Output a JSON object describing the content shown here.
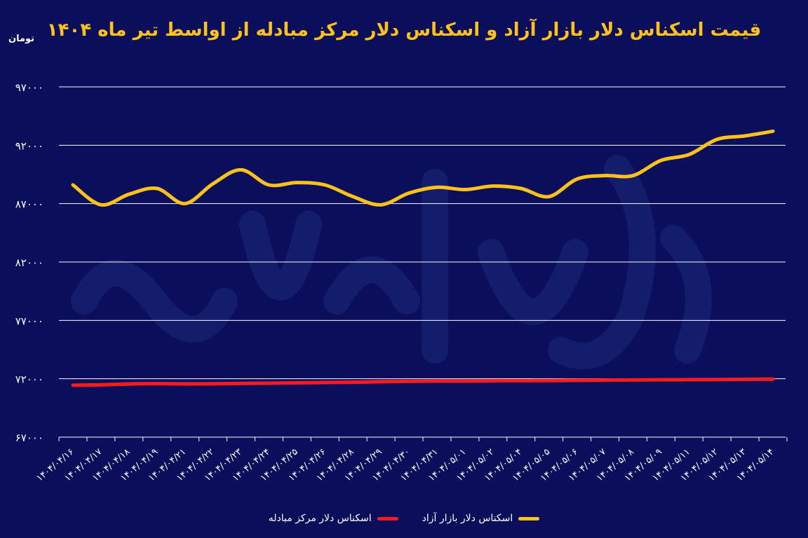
{
  "chart_data": {
    "type": "line",
    "title": "قیمت اسکناس دلار بازار آزاد و اسکناس دلار مرکز مبادله از اواسط تیر ماه ۱۴۰۴",
    "ylabel": "تومان",
    "xlabel": "",
    "ylim": [
      67000,
      97000
    ],
    "yticks": [
      "۶۷۰۰۰",
      "۷۲۰۰۰",
      "۷۷۰۰۰",
      "۸۲۰۰۰",
      "۸۷۰۰۰",
      "۹۲۰۰۰",
      "۹۷۰۰۰"
    ],
    "ytick_values": [
      67000,
      72000,
      77000,
      82000,
      87000,
      92000,
      97000
    ],
    "grid": true,
    "legend_position": "bottom",
    "categories": [
      "۱۴۰۴/۰۴/۱۶",
      "۱۴۰۴/۰۴/۱۷",
      "۱۴۰۴/۰۴/۱۸",
      "۱۴۰۴/۰۴/۱۹",
      "۱۴۰۴/۰۴/۲۱",
      "۱۴۰۴/۰۴/۲۲",
      "۱۴۰۴/۰۴/۲۳",
      "۱۴۰۴/۰۴/۲۴",
      "۱۴۰۴/۰۴/۲۵",
      "۱۴۰۴/۰۴/۲۶",
      "۱۴۰۴/۰۴/۲۸",
      "۱۴۰۴/۰۴/۲۹",
      "۱۴۰۴/۰۴/۳۰",
      "۱۴۰۴/۰۴/۳۱",
      "۱۴۰۴/۰۵/۰۱",
      "۱۴۰۴/۰۵/۰۲",
      "۱۴۰۴/۰۵/۰۴",
      "۱۴۰۴/۰۵/۰۵",
      "۱۴۰۴/۰۵/۰۶",
      "۱۴۰۴/۰۵/۰۷",
      "۱۴۰۴/۰۵/۰۸",
      "۱۴۰۴/۰۵/۰۹",
      "۱۴۰۴/۰۵/۱۱",
      "۱۴۰۴/۰۵/۱۲",
      "۱۴۰۴/۰۵/۱۳",
      "۱۴۰۴/۰۵/۱۴"
    ],
    "series": [
      {
        "name": "اسکناس دلار بازار آزاد",
        "color": "#ffc21a",
        "values": [
          88600,
          86900,
          87800,
          88300,
          87000,
          88700,
          89900,
          88600,
          88800,
          88600,
          87600,
          86900,
          87900,
          88400,
          88200,
          88500,
          88300,
          87600,
          89100,
          89400,
          89400,
          90700,
          91200,
          92500,
          92800,
          93200
        ]
      },
      {
        "name": "اسکناس دلار مرکز مبادله",
        "color": "#ff1a1a",
        "values": [
          71450,
          71480,
          71550,
          71580,
          71560,
          71570,
          71600,
          71620,
          71650,
          71680,
          71700,
          71750,
          71780,
          71800,
          71800,
          71820,
          71830,
          71840,
          71860,
          71880,
          71900,
          71910,
          71920,
          71930,
          71950,
          71970
        ]
      }
    ]
  }
}
